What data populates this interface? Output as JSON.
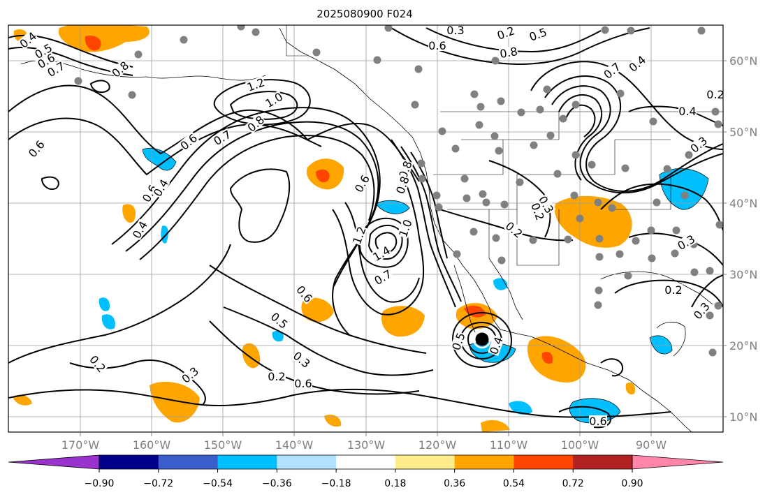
{
  "title": "2025080900 F024",
  "map": {
    "type": "map",
    "lon_ticks": [
      "170°W",
      "160°W",
      "150°W",
      "140°W",
      "130°W",
      "120°W",
      "110°W",
      "100°W",
      "90°W"
    ],
    "lat_ticks": [
      "60°N",
      "50°N",
      "40°N",
      "30°N",
      "20°N",
      "10°N"
    ],
    "tick_label_color": "#7f7f7f",
    "contour_labels": [
      "0.4",
      "0.5",
      "0.6",
      "0.7",
      "0.8",
      "0.6",
      "1.2",
      "1.0",
      "0.8",
      "0.7",
      "0.6",
      "0.4",
      "0.6",
      "0.4",
      "0.6",
      "0.8",
      "0.8",
      "1.0",
      "1.2",
      "1.4",
      "0.7",
      "0.6",
      "0.5",
      "0.3",
      "0.2",
      "0.3",
      "0.2",
      "0.6",
      "0.5",
      "0.4",
      "0.3",
      "0.2",
      "0.3",
      "0.2",
      "0.5",
      "0.6",
      "0.8",
      "0.7",
      "0.4",
      "0.2",
      "0.4",
      "0.3",
      "0.2",
      "0.3",
      "0.2",
      "0.3",
      "0.6"
    ],
    "station_marker_color": "#808080",
    "hurricane_marker_color": "#000000"
  },
  "colorbar": {
    "ticks": [
      "−0.90",
      "−0.72",
      "−0.54",
      "−0.36",
      "−0.18",
      "0.18",
      "0.36",
      "0.54",
      "0.72",
      "0.90"
    ],
    "colors": [
      "#9a32cd",
      "#00008b",
      "#3a5fcd",
      "#00bfff",
      "#b2e2ff",
      "#ffffff",
      "#ffec8b",
      "#ffa500",
      "#ff4500",
      "#b22222",
      "#ff86a8"
    ]
  }
}
